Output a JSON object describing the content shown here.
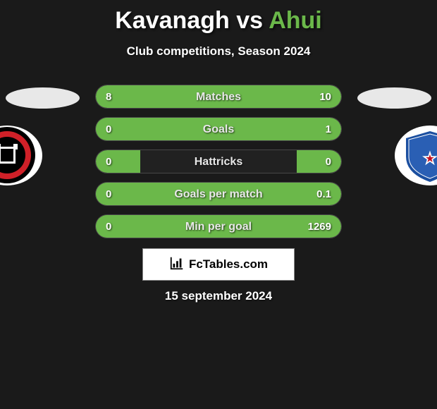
{
  "header": {
    "title_left": "Kavanagh",
    "title_mid": " vs ",
    "title_right": "Ahui",
    "title_left_color": "#ffffff",
    "title_right_color": "#6bb84a",
    "subtitle": "Club competitions, Season 2024"
  },
  "background_color": "#1a1a1a",
  "teams": {
    "left_crest_bg": "#ffffff",
    "left_crest_ring": "#000000",
    "left_crest_inner": "#d02028",
    "right_crest_bg": "#ffffff",
    "right_crest_inner": "#1b4fa0",
    "right_crest_accent": "#c01020"
  },
  "stats": {
    "bar_color_left": "#6bb84a",
    "bar_color_right": "#6bb84a",
    "track_border": "rgba(255,255,255,0.18)",
    "rows": [
      {
        "label": "Matches",
        "left": "8",
        "right": "10",
        "left_pct": 44.4,
        "right_pct": 55.6
      },
      {
        "label": "Goals",
        "left": "0",
        "right": "1",
        "left_pct": 18.0,
        "right_pct": 100.0
      },
      {
        "label": "Hattricks",
        "left": "0",
        "right": "0",
        "left_pct": 18.0,
        "right_pct": 18.0
      },
      {
        "label": "Goals per match",
        "left": "0",
        "right": "0.1",
        "left_pct": 18.0,
        "right_pct": 100.0
      },
      {
        "label": "Min per goal",
        "left": "0",
        "right": "1269",
        "left_pct": 18.0,
        "right_pct": 100.0
      }
    ]
  },
  "brand": {
    "text": "FcTables.com"
  },
  "date": "15 september 2024"
}
